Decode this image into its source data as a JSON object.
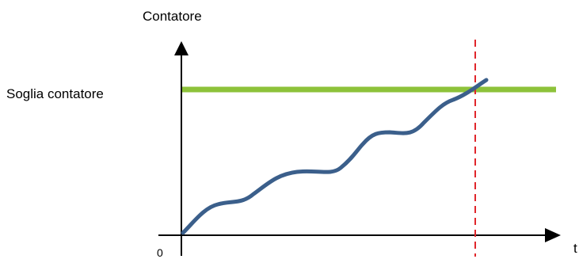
{
  "labels": {
    "y_axis": "Contatore",
    "x_axis": "t",
    "threshold": "Soglia contatore",
    "origin": "0"
  },
  "colors": {
    "axis": "#000000",
    "threshold_line": "#8dc23a",
    "counter_curve": "#3b5f8b",
    "crossing_marker": "#e0262b"
  }
}
